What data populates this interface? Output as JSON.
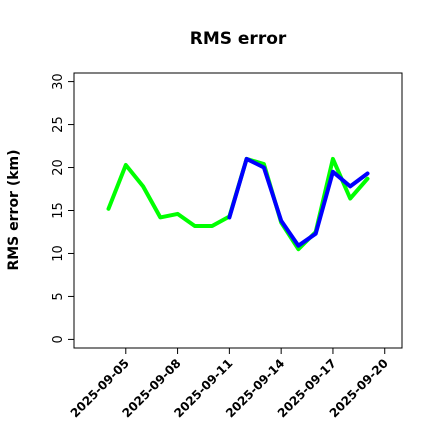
{
  "chart_data": {
    "type": "line",
    "title": "RMS error",
    "xlabel": "",
    "ylabel": "RMS error (km)",
    "xlim": [
      "2025-09-02",
      "2025-09-21"
    ],
    "ylim": [
      -1,
      31
    ],
    "yticks": [
      0,
      5,
      10,
      15,
      20,
      25,
      30
    ],
    "xticks": [
      {
        "label": "2025-09-05",
        "color": "#000000"
      },
      {
        "label": "2025-09-08",
        "color": "#000000"
      },
      {
        "label": "2025-09-11",
        "color": "#228b22"
      },
      {
        "label": "2025-09-14",
        "color": "#000000"
      },
      {
        "label": "2025-09-17",
        "color": "#000000"
      },
      {
        "label": "2025-09-20",
        "color": "#000000"
      }
    ],
    "series": [
      {
        "color": "#00ff00",
        "points": [
          {
            "x": "2025-09-04",
            "y": 15.2
          },
          {
            "x": "2025-09-05",
            "y": 20.3
          },
          {
            "x": "2025-09-06",
            "y": 17.8
          },
          {
            "x": "2025-09-07",
            "y": 14.2
          },
          {
            "x": "2025-09-08",
            "y": 14.6
          },
          {
            "x": "2025-09-09",
            "y": 13.2
          },
          {
            "x": "2025-09-10",
            "y": 13.2
          },
          {
            "x": "2025-09-11",
            "y": 14.3
          },
          {
            "x": "2025-09-12",
            "y": 21.0
          },
          {
            "x": "2025-09-13",
            "y": 20.4
          },
          {
            "x": "2025-09-14",
            "y": 13.6
          },
          {
            "x": "2025-09-15",
            "y": 10.5
          },
          {
            "x": "2025-09-16",
            "y": 12.5
          },
          {
            "x": "2025-09-17",
            "y": 21.0
          },
          {
            "x": "2025-09-18",
            "y": 16.4
          },
          {
            "x": "2025-09-19",
            "y": 18.7
          }
        ]
      },
      {
        "color": "#0000ff",
        "points": [
          {
            "x": "2025-09-11",
            "y": 14.2
          },
          {
            "x": "2025-09-12",
            "y": 21.0
          },
          {
            "x": "2025-09-13",
            "y": 20.0
          },
          {
            "x": "2025-09-14",
            "y": 13.8
          },
          {
            "x": "2025-09-15",
            "y": 10.9
          },
          {
            "x": "2025-09-16",
            "y": 12.3
          },
          {
            "x": "2025-09-17",
            "y": 19.5
          },
          {
            "x": "2025-09-18",
            "y": 17.8
          },
          {
            "x": "2025-09-19",
            "y": 19.3
          }
        ]
      }
    ]
  }
}
